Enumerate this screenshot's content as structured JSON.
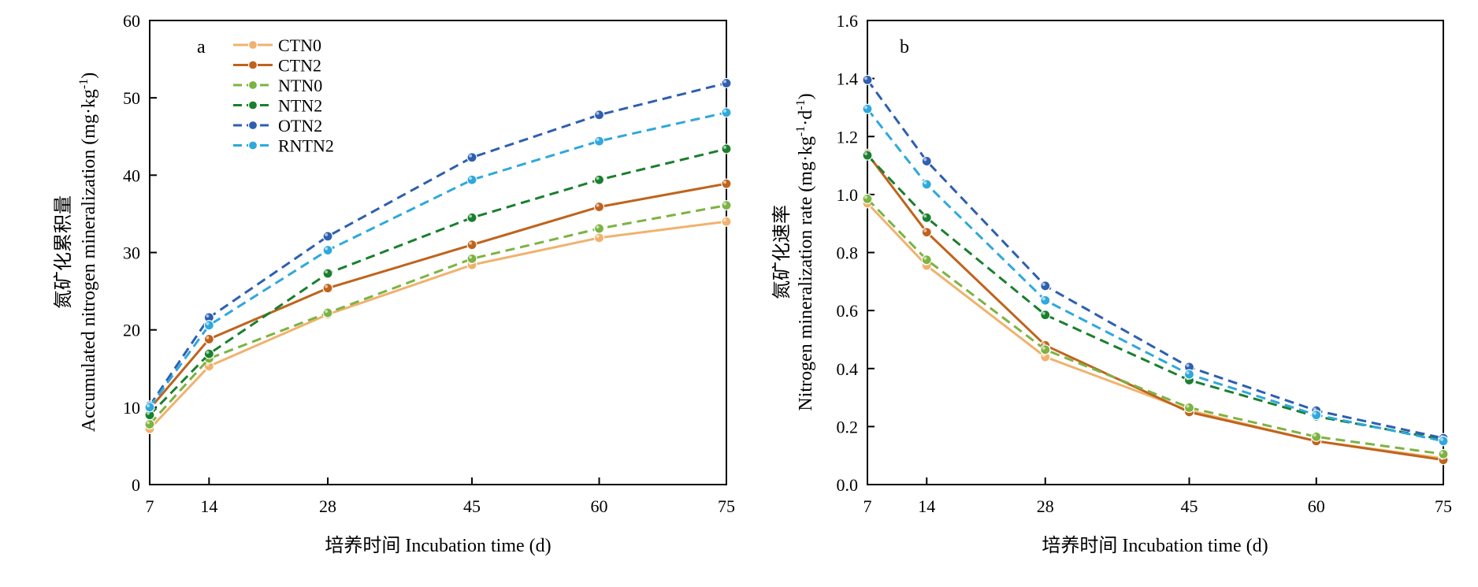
{
  "chart_data": [
    {
      "type": "line",
      "panel_label": "a",
      "xlabel": "培养时间 Incubation time (d)",
      "ylabel_cn": "氮矿化累积量",
      "ylabel_en_main": "Accumulated nitrogen mineralization (mg·kg",
      "ylabel_en_sup": "-1",
      "ylabel_en_end": ")",
      "x": [
        7,
        14,
        28,
        45,
        60,
        75
      ],
      "xticks": [
        7,
        14,
        28,
        45,
        60,
        75
      ],
      "yticks": [
        0,
        10,
        20,
        30,
        40,
        50,
        60
      ],
      "xlim": [
        7,
        75
      ],
      "ylim": [
        0,
        60
      ],
      "grid": false,
      "legend_position": "top-left",
      "series": [
        {
          "name": "CTN0",
          "values": [
            7.2,
            15.3,
            22.0,
            28.4,
            31.9,
            34.0
          ],
          "color": "#f0b26e",
          "dash": "solid"
        },
        {
          "name": "CTN2",
          "values": [
            9.8,
            18.8,
            25.4,
            31.0,
            35.9,
            38.9
          ],
          "color": "#c0631c",
          "dash": "solid"
        },
        {
          "name": "NTN0",
          "values": [
            7.8,
            16.3,
            22.2,
            29.2,
            33.1,
            36.1
          ],
          "color": "#7cb342",
          "dash": "dashed"
        },
        {
          "name": "NTN2",
          "values": [
            9.0,
            16.9,
            27.3,
            34.5,
            39.4,
            43.4
          ],
          "color": "#1a7f2e",
          "dash": "dashed"
        },
        {
          "name": "OTN2",
          "values": [
            10.2,
            21.6,
            32.1,
            42.3,
            47.8,
            51.9
          ],
          "color": "#2e5fb0",
          "dash": "dashed"
        },
        {
          "name": "RNTN2",
          "values": [
            10.0,
            20.6,
            30.3,
            39.4,
            44.4,
            48.1
          ],
          "color": "#2fa8dc",
          "dash": "dashed"
        }
      ]
    },
    {
      "type": "line",
      "panel_label": "b",
      "xlabel": "培养时间 Incubation time (d)",
      "ylabel_cn": "氮矿化速率",
      "ylabel_en_main": "Nitrogen mineralization rate (mg·kg",
      "ylabel_en_sup": "-1",
      "ylabel_en_mid": "·d",
      "ylabel_en_sup2": "-1",
      "ylabel_en_end": ")",
      "x": [
        7,
        14,
        28,
        45,
        60,
        75
      ],
      "xticks": [
        7,
        14,
        28,
        45,
        60,
        75
      ],
      "yticks": [
        0,
        0.2,
        0.4,
        0.6,
        0.8,
        1.0,
        1.2,
        1.4,
        1.6
      ],
      "xlim": [
        7,
        75
      ],
      "ylim": [
        0,
        1.6
      ],
      "grid": false,
      "legend_position": "none",
      "series": [
        {
          "name": "CTN0",
          "values": [
            0.97,
            0.755,
            0.44,
            0.255,
            0.15,
            0.09
          ],
          "color": "#f0b26e",
          "dash": "solid"
        },
        {
          "name": "CTN2",
          "values": [
            1.14,
            0.87,
            0.48,
            0.25,
            0.15,
            0.085
          ],
          "color": "#c0631c",
          "dash": "solid"
        },
        {
          "name": "NTN0",
          "values": [
            0.985,
            0.775,
            0.465,
            0.265,
            0.165,
            0.105
          ],
          "color": "#7cb342",
          "dash": "dashed"
        },
        {
          "name": "NTN2",
          "values": [
            1.135,
            0.92,
            0.585,
            0.36,
            0.235,
            0.155
          ],
          "color": "#1a7f2e",
          "dash": "dashed"
        },
        {
          "name": "OTN2",
          "values": [
            1.395,
            1.115,
            0.685,
            0.405,
            0.255,
            0.16
          ],
          "color": "#2e5fb0",
          "dash": "dashed"
        },
        {
          "name": "RNTN2",
          "values": [
            1.295,
            1.035,
            0.635,
            0.38,
            0.24,
            0.15
          ],
          "color": "#2fa8dc",
          "dash": "dashed"
        }
      ]
    }
  ]
}
